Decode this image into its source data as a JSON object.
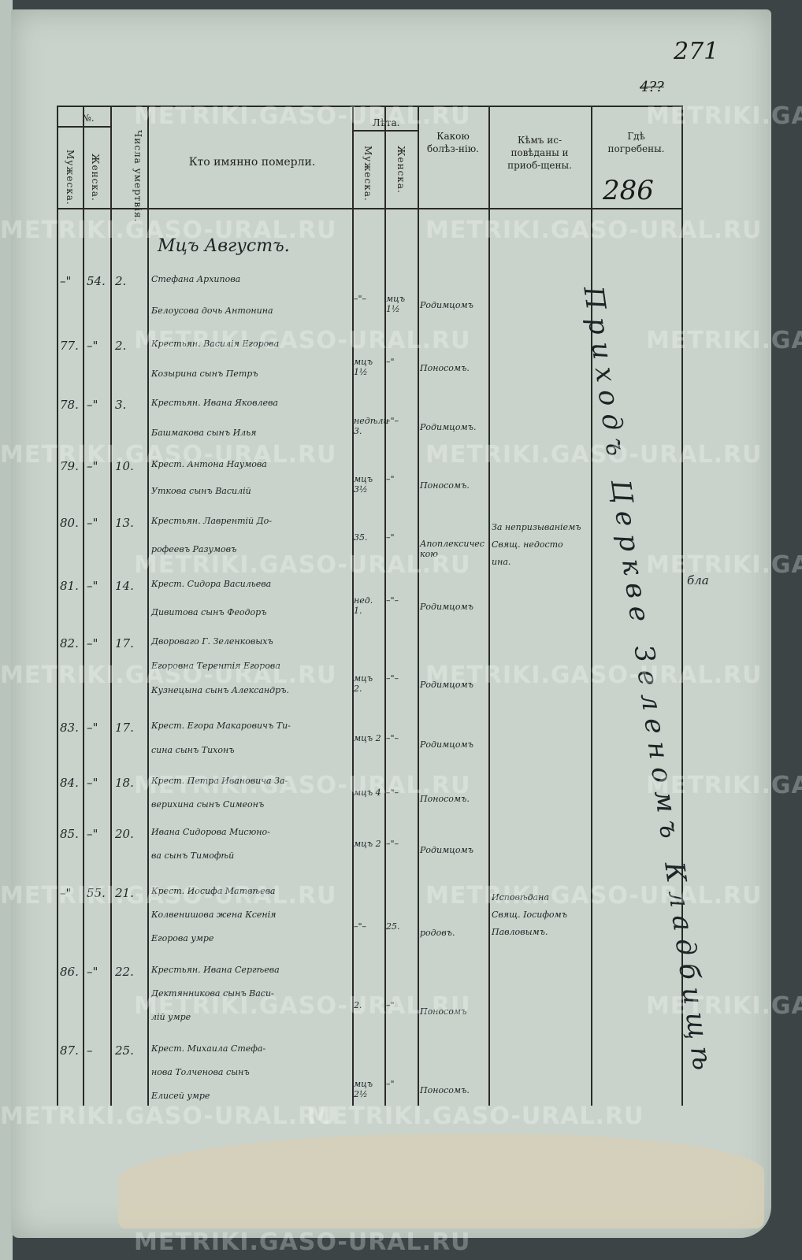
{
  "page_number": "271",
  "old_page_number": "4??",
  "folio_number": "286",
  "watermark": "METRIKI.GASO-URAL.RU",
  "headers": {
    "no": "№.",
    "no_male": "Мужеска.",
    "no_female": "Женска.",
    "date": "Числа умертвія.",
    "name": "Кто имянно померли.",
    "age": "Лѣта.",
    "age_male": "Мужеска.",
    "age_female": "Женска.",
    "disease": "Какою болѣз-нію.",
    "confessed": "Кѣмъ ис-повѣданы и приоб-щены.",
    "buried": "Гдѣ погребены."
  },
  "month_heading": "Мцъ Августъ.",
  "entries": [
    {
      "m": "–\"",
      "f": "54.",
      "d": "2.",
      "lines": [
        "Стефана Архипова",
        "Белоусова дочь Антонина"
      ],
      "am": "–\"–",
      "af": "мцъ 1½",
      "dis": "Родимцомъ",
      "conf": []
    },
    {
      "m": "77.",
      "f": "–\"",
      "d": "2.",
      "lines": [
        "Крестьян. Василія Егорова",
        "Козырина сынъ Петръ"
      ],
      "am": "мцъ 1½",
      "af": "–\"",
      "dis": "Поносомъ.",
      "conf": []
    },
    {
      "m": "78.",
      "f": "–\"",
      "d": "3.",
      "lines": [
        "Крестьян. Ивана Яковлева",
        "Башмакова сынъ Илья"
      ],
      "am": "недѣли 3.",
      "af": "–\"–",
      "dis": "Родимцомъ.",
      "conf": []
    },
    {
      "m": "79.",
      "f": "–\"",
      "d": "10.",
      "lines": [
        "Крест. Антона Наумова",
        "Уткова сынъ Василій"
      ],
      "am": "мцъ 3½",
      "af": "–\"",
      "dis": "Поносомъ.",
      "conf": []
    },
    {
      "m": "80.",
      "f": "–\"",
      "d": "13.",
      "lines": [
        "Крестьян. Лаврентій До-",
        "рофеевъ Разумовъ"
      ],
      "am": "35.",
      "af": "–\"",
      "dis": "Апоплексическою",
      "conf": [
        "За непризываніемъ",
        "Свящ. недосто",
        "ина."
      ]
    },
    {
      "m": "81.",
      "f": "–\"",
      "d": "14.",
      "lines": [
        "Крест. Сидора Васильева",
        "Дивитова сынъ Феодоръ"
      ],
      "am": "нед. 1.",
      "af": "–\"–",
      "dis": "Родимцомъ",
      "conf": []
    },
    {
      "m": "82.",
      "f": "–\"",
      "d": "17.",
      "lines": [
        "Двороваго Г. Зеленковыхъ",
        "Егоровна Терентія Егорова",
        "Кузнецына сынъ Александръ."
      ],
      "am": "мцъ 2.",
      "af": "–\"–",
      "dis": "Родимцомъ",
      "conf": []
    },
    {
      "m": "83.",
      "f": "–\"",
      "d": "17.",
      "lines": [
        "Крест. Егора Макаровичъ Ти-",
        "сина сынъ Тихонъ"
      ],
      "am": "мцъ 2",
      "af": "–\"–",
      "dis": "Родимцомъ",
      "conf": []
    },
    {
      "m": "84.",
      "f": "–\"",
      "d": "18.",
      "lines": [
        "Крест. Петра Ивановича За-",
        "верихина сынъ Симеонъ"
      ],
      "am": "мцъ 4",
      "af": "–\"–",
      "dis": "Поносомъ.",
      "conf": []
    },
    {
      "m": "85.",
      "f": "–\"",
      "d": "20.",
      "lines": [
        "Ивана Сидорова Мисюно-",
        "ва сынъ Тимофѣй"
      ],
      "am": "мцъ 2",
      "af": "–\"–",
      "dis": "Родимцомъ",
      "conf": []
    },
    {
      "m": "–\"",
      "f": "55.",
      "d": "21.",
      "lines": [
        "Крест. Иосифа Матвѣева",
        "Колвенишова жена Ксенія",
        "Егорова умре"
      ],
      "am": "–\"–",
      "af": "25.",
      "dis": "родовъ.",
      "conf": [
        "Исповѣдана",
        "Свящ. Іосифомъ",
        "Павловымъ."
      ]
    },
    {
      "m": "86.",
      "f": "–\"",
      "d": "22.",
      "lines": [
        "Крестьян. Ивана Сергѣева",
        "Дектянникова сынъ Васи-",
        "лій умре"
      ],
      "am": "2.",
      "af": "–\"",
      "dis": "Поносомъ",
      "conf": []
    },
    {
      "m": "87.",
      "f": "–",
      "d": "25.",
      "lines": [
        "Крест. Михаила Стефа-",
        "нова Толченова сынъ",
        "Елисей умре"
      ],
      "am": "мцъ 2½",
      "af": "–\"",
      "dis": "Поносомъ.",
      "conf": []
    }
  ],
  "buried_note": "Приходъ Церкве Зеленомъ Кладбищѣ",
  "margin_note": "бла"
}
